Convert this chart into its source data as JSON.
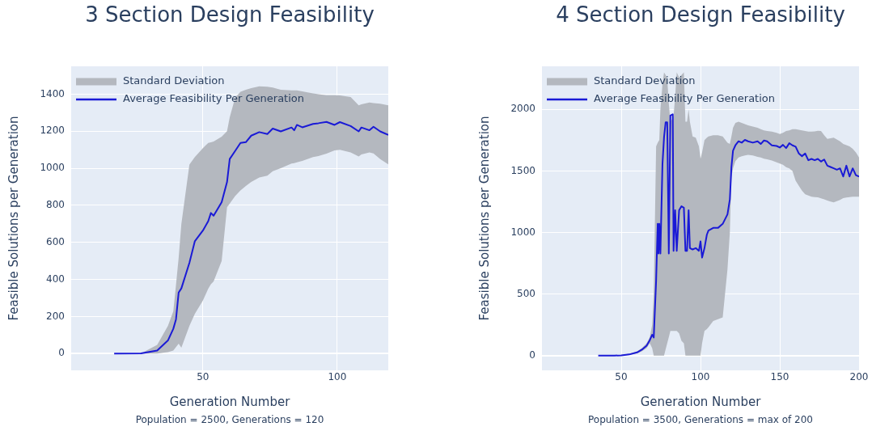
{
  "chart_data": [
    {
      "type": "line",
      "title": "3 Section Design Feasibility",
      "xlabel": "Generation Number",
      "ylabel": "Feasible Solutions per Generation",
      "annotations": [
        "Standard Deviation",
        "Population = 2500, Generations = 120"
      ],
      "xlim": [
        1,
        119
      ],
      "xticks": [
        50,
        100
      ],
      "ylim": [
        -90,
        1550
      ],
      "yticks": [
        0,
        200,
        400,
        600,
        800,
        1000,
        1200,
        1400
      ],
      "grid": true,
      "legend": "top left",
      "series": [
        {
          "name": "Average Feasibility Per Generation",
          "color": "#1a1ad6",
          "x": [
            17,
            27,
            33,
            37,
            39,
            40,
            41,
            42,
            45,
            47,
            50,
            52,
            53,
            54,
            57,
            59,
            60,
            62,
            64,
            66,
            68,
            71,
            74,
            76,
            79,
            83,
            84,
            85,
            87,
            91,
            93,
            96,
            99,
            101,
            105,
            108,
            109,
            112,
            113.5,
            116,
            119
          ],
          "values": [
            0,
            2,
            17,
            71,
            134,
            185,
            330,
            352,
            490,
            606,
            664,
            715,
            759,
            744,
            817,
            926,
            1050,
            1093,
            1137,
            1141,
            1176,
            1195,
            1185,
            1214,
            1199,
            1220,
            1205,
            1234,
            1221,
            1239,
            1243,
            1250,
            1234,
            1249,
            1228,
            1199,
            1220,
            1205,
            1224,
            1199,
            1180
          ],
          "lower": [
            0,
            0,
            0,
            8,
            17,
            35,
            54,
            32,
            150,
            214,
            286,
            350,
            374,
            390,
            500,
            790,
            810,
            850,
            880,
            905,
            926,
            950,
            960,
            984,
            1000,
            1025,
            1028,
            1032,
            1040,
            1060,
            1066,
            1079,
            1096,
            1100,
            1085,
            1064,
            1075,
            1086,
            1080,
            1050,
            1021
          ],
          "upper": [
            0,
            2,
            47,
            150,
            228,
            370,
            519,
            700,
            1020,
            1060,
            1108,
            1137,
            1140,
            1144,
            1170,
            1200,
            1275,
            1380,
            1413,
            1423,
            1432,
            1442,
            1440,
            1435,
            1424,
            1420,
            1420,
            1420,
            1415,
            1404,
            1400,
            1394,
            1394,
            1393,
            1384,
            1340,
            1345,
            1355,
            1352,
            1348,
            1340
          ]
        }
      ]
    },
    {
      "type": "line",
      "title": "4 Section Design Feasibility",
      "xlabel": "Generation Number",
      "ylabel": "Feasible Solutions per Generation",
      "annotations": [
        "Standard Deviation",
        "Population = 3500, Generations = max of 200"
      ],
      "xlim": [
        0,
        200
      ],
      "xticks": [
        50,
        100,
        150,
        200
      ],
      "ylim": [
        -120,
        2350
      ],
      "yticks": [
        0,
        500,
        1000,
        1500,
        2000
      ],
      "grid": true,
      "legend": "top left",
      "series": [
        {
          "name": "Average Feasibility Per Generation",
          "color": "#1a1ad6",
          "x": [
            35.5,
            36.2,
            37,
            39,
            40.7,
            41.5,
            42.7,
            44,
            45,
            45.6,
            50,
            55,
            60,
            63,
            66,
            68,
            69.5,
            70.5,
            72,
            73,
            73.5,
            74,
            74.7,
            76,
            77,
            78,
            79,
            80,
            81,
            82.5,
            83,
            84,
            85,
            86.5,
            88,
            89.5,
            90.5,
            91.5,
            92.5,
            93.3,
            95,
            97,
            99,
            100,
            101,
            102.5,
            104,
            105,
            108,
            111,
            114,
            117,
            118.5,
            119.5,
            120.5,
            122,
            124,
            126,
            128,
            130,
            133,
            136,
            138,
            140,
            142,
            145,
            148,
            150,
            152,
            154,
            156,
            158,
            160,
            162,
            164,
            166,
            168,
            170,
            172,
            174,
            176,
            178,
            180,
            182,
            184,
            186,
            188,
            190,
            192,
            194,
            196,
            198,
            200
          ],
          "values": [
            0,
            0,
            0,
            0,
            0,
            0,
            0,
            0,
            0,
            0,
            2,
            9,
            26,
            48,
            81,
            125,
            169,
            147,
            609,
            1070,
            829,
            1070,
            829,
            1554,
            1774,
            1895,
            1895,
            829,
            1950,
            1960,
            851,
            1180,
            851,
            1180,
            1213,
            1202,
            851,
            851,
            1180,
            873,
            862,
            873,
            851,
            928,
            796,
            873,
            982,
            1015,
            1037,
            1037,
            1070,
            1147,
            1268,
            1532,
            1664,
            1708,
            1741,
            1730,
            1752,
            1741,
            1730,
            1741,
            1719,
            1747,
            1741,
            1708,
            1703,
            1690,
            1712,
            1686,
            1725,
            1708,
            1697,
            1642,
            1620,
            1642,
            1587,
            1598,
            1587,
            1598,
            1576,
            1593,
            1543,
            1532,
            1521,
            1510,
            1521,
            1455,
            1543,
            1455,
            1521,
            1466,
            1455
          ],
          "lower": [
            null,
            null,
            null,
            null,
            null,
            null,
            null,
            null,
            null,
            null,
            0,
            5,
            18,
            35,
            60,
            100,
            60,
            0,
            0,
            0,
            0,
            0,
            0,
            0,
            0,
            50,
            100,
            150,
            200,
            200,
            200,
            200,
            200,
            180,
            120,
            100,
            0,
            0,
            0,
            0,
            0,
            0,
            0,
            0,
            100,
            200,
            215,
            230,
            280,
            295,
            310,
            700,
            1000,
            1450,
            1520,
            1580,
            1610,
            1620,
            1625,
            1630,
            1625,
            1615,
            1610,
            1600,
            1595,
            1585,
            1570,
            1560,
            1550,
            1530,
            1520,
            1500,
            1420,
            1380,
            1340,
            1310,
            1300,
            1290,
            1288,
            1285,
            1278,
            1270,
            1260,
            1252,
            1245,
            1255,
            1265,
            1280,
            1284,
            1288,
            1290,
            1290,
            1290
          ],
          "upper": [
            null,
            null,
            null,
            null,
            null,
            null,
            null,
            null,
            null,
            null,
            4,
            14,
            35,
            60,
            100,
            150,
            250,
            500,
            1700,
            1730,
            1740,
            1750,
            2000,
            2200,
            2300,
            2280,
            2250,
            2050,
            1900,
            1930,
            1950,
            2100,
            2300,
            2260,
            2280,
            2300,
            1900,
            1900,
            2000,
            1900,
            1780,
            1770,
            1700,
            1600,
            1650,
            1750,
            1770,
            1780,
            1790,
            1790,
            1780,
            1730,
            1720,
            1780,
            1850,
            1890,
            1900,
            1890,
            1880,
            1870,
            1860,
            1850,
            1840,
            1830,
            1825,
            1820,
            1810,
            1800,
            1810,
            1825,
            1830,
            1840,
            1840,
            1835,
            1830,
            1825,
            1820,
            1820,
            1822,
            1826,
            1825,
            1790,
            1760,
            1765,
            1770,
            1755,
            1740,
            1720,
            1710,
            1700,
            1680,
            1650,
            1610
          ]
        }
      ]
    }
  ]
}
